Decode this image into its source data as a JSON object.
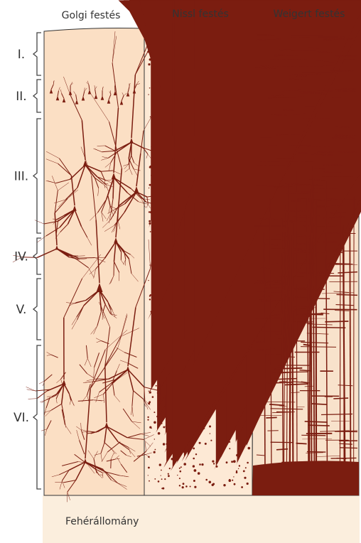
{
  "headers": [
    "Golgi festés",
    "Nissl festés",
    "Weigert festés"
  ],
  "layers": [
    "I.",
    "II.",
    "III.",
    "IV.",
    "V.",
    "VI."
  ],
  "white_matter": "Fehérállomány"
}
